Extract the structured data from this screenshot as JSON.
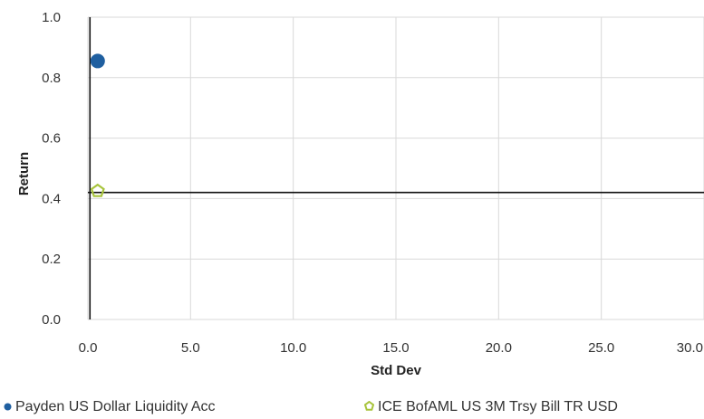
{
  "chart_data": {
    "type": "scatter",
    "xlabel": "Std Dev",
    "ylabel": "Return",
    "xlim": [
      0,
      30
    ],
    "ylim": [
      0,
      1
    ],
    "xticks": [
      "0.0",
      "5.0",
      "10.0",
      "15.0",
      "20.0",
      "25.0",
      "30.0"
    ],
    "yticks": [
      "0.0",
      "0.2",
      "0.4",
      "0.6",
      "0.8",
      "1.0"
    ],
    "grid": true,
    "legend_position": "bottom",
    "series": [
      {
        "name": "Payden US Dollar Liquidity Acc",
        "marker": "circle",
        "color": "#1F5FA0",
        "points": [
          {
            "x": 0.3,
            "y": 0.855
          }
        ]
      },
      {
        "name": "ICE BofAML US 3M Trsy Bill TR USD",
        "marker": "pentagon",
        "color": "#A8C43C",
        "points": [
          {
            "x": 0.3,
            "y": 0.425
          }
        ]
      }
    ],
    "reference_lines": {
      "x": 0.1,
      "y": 0.42
    }
  }
}
